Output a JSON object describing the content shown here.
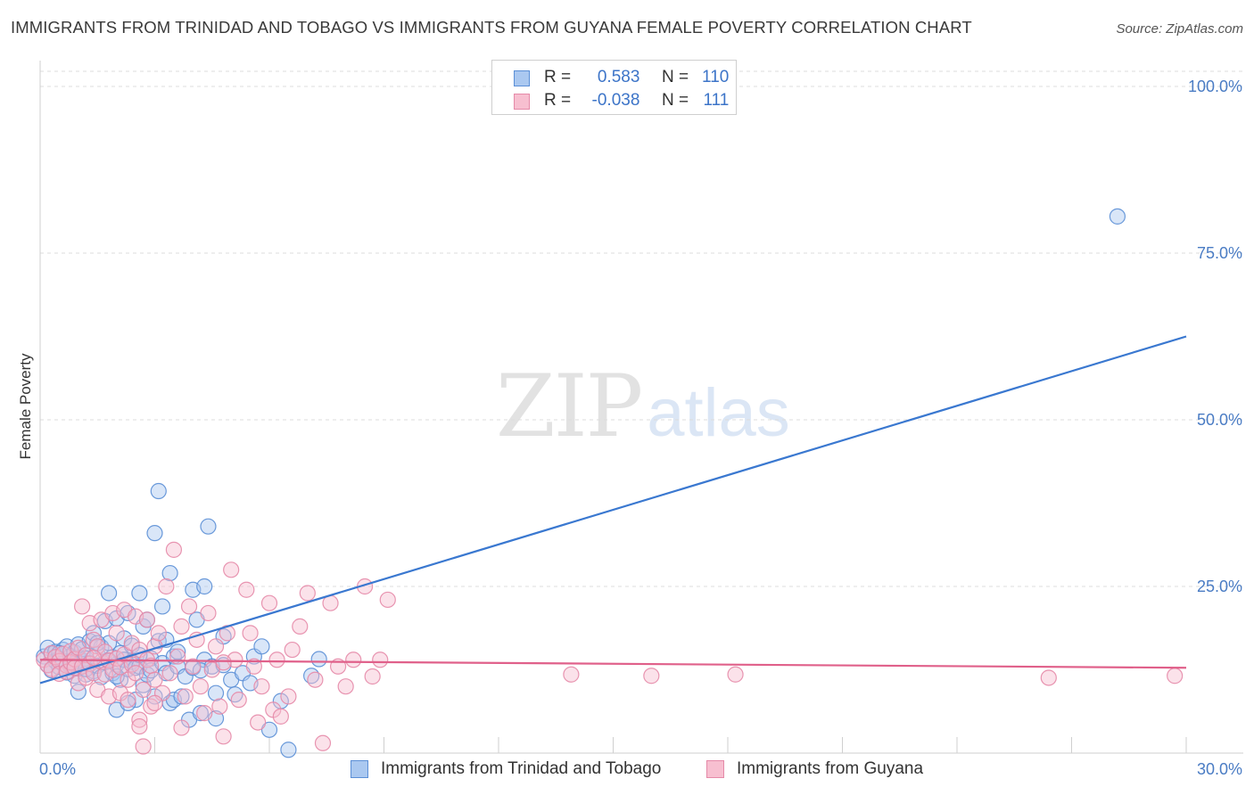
{
  "header": {
    "title": "IMMIGRANTS FROM TRINIDAD AND TOBAGO VS IMMIGRANTS FROM GUYANA FEMALE POVERTY CORRELATION CHART",
    "source": "Source: ZipAtlas.com"
  },
  "watermark": {
    "zip": "ZIP",
    "atlas": "atlas"
  },
  "legend": {
    "series": [
      {
        "r_label": "R =",
        "r_value": "0.583",
        "n_label": "N =",
        "n_value": "110"
      },
      {
        "r_label": "R =",
        "r_value": "-0.038",
        "n_label": "N =",
        "n_value": "111"
      }
    ]
  },
  "colors": {
    "blue_fill": "#aac8f0",
    "blue_stroke": "#5b8fd6",
    "blue_line": "#3a78d0",
    "pink_fill": "#f7bfd0",
    "pink_stroke": "#e58aa8",
    "pink_line": "#e0608a",
    "grid": "#dcdcdc",
    "tick_text": "#4a7cc4"
  },
  "chart_data": {
    "type": "scatter",
    "title": "IMMIGRANTS FROM TRINIDAD AND TOBAGO VS IMMIGRANTS FROM GUYANA FEMALE POVERTY CORRELATION CHART",
    "xlabel": "",
    "ylabel": "Female Poverty",
    "xlim": [
      0,
      30
    ],
    "ylim": [
      0,
      100
    ],
    "x_ticks": [
      "0.0%",
      "30.0%"
    ],
    "y_ticks": [
      {
        "value": 25,
        "label": "25.0%"
      },
      {
        "value": 50,
        "label": "50.0%"
      },
      {
        "value": 75,
        "label": "75.0%"
      },
      {
        "value": 100,
        "label": "100.0%"
      }
    ],
    "series": [
      {
        "name": "Immigrants from Trinidad and Tobago",
        "r": 0.583,
        "n": 110,
        "trend": {
          "x": [
            0,
            30
          ],
          "y": [
            10.5,
            62.5
          ]
        },
        "points": [
          [
            0.1,
            14.5
          ],
          [
            0.2,
            15.8
          ],
          [
            0.2,
            13.2
          ],
          [
            0.3,
            14.9
          ],
          [
            0.3,
            12.4
          ],
          [
            0.4,
            15.2
          ],
          [
            0.4,
            13.8
          ],
          [
            0.5,
            14.1
          ],
          [
            0.5,
            12.9
          ],
          [
            0.6,
            15.5
          ],
          [
            0.6,
            13.4
          ],
          [
            0.7,
            16.0
          ],
          [
            0.7,
            12.1
          ],
          [
            0.8,
            14.6
          ],
          [
            0.8,
            13.0
          ],
          [
            0.9,
            15.1
          ],
          [
            0.9,
            11.6
          ],
          [
            1.0,
            14.3
          ],
          [
            1.0,
            16.3
          ],
          [
            1.0,
            12.7
          ],
          [
            1.1,
            13.9
          ],
          [
            1.1,
            15.6
          ],
          [
            1.2,
            14.2
          ],
          [
            1.2,
            11.8
          ],
          [
            1.3,
            13.5
          ],
          [
            1.3,
            16.8
          ],
          [
            1.4,
            18.0
          ],
          [
            1.4,
            12.3
          ],
          [
            1.5,
            14.8
          ],
          [
            1.5,
            13.1
          ],
          [
            1.6,
            15.9
          ],
          [
            1.6,
            11.4
          ],
          [
            1.7,
            19.8
          ],
          [
            1.7,
            13.6
          ],
          [
            1.8,
            16.5
          ],
          [
            1.8,
            24.0
          ],
          [
            1.9,
            12.0
          ],
          [
            1.9,
            14.4
          ],
          [
            2.0,
            13.3
          ],
          [
            2.0,
            20.2
          ],
          [
            2.1,
            15.0
          ],
          [
            2.1,
            11.0
          ],
          [
            2.2,
            17.2
          ],
          [
            2.2,
            14.0
          ],
          [
            2.3,
            12.6
          ],
          [
            2.3,
            21.0
          ],
          [
            2.4,
            13.7
          ],
          [
            2.4,
            16.1
          ],
          [
            2.5,
            8.0
          ],
          [
            2.5,
            12.8
          ],
          [
            2.6,
            24.0
          ],
          [
            2.6,
            13.0
          ],
          [
            2.7,
            19.0
          ],
          [
            2.7,
            10.2
          ],
          [
            2.8,
            20.0
          ],
          [
            2.8,
            11.8
          ],
          [
            2.9,
            14.2
          ],
          [
            2.9,
            12.4
          ],
          [
            3.0,
            33.0
          ],
          [
            3.0,
            8.5
          ],
          [
            3.1,
            39.3
          ],
          [
            3.1,
            16.8
          ],
          [
            3.2,
            22.0
          ],
          [
            3.2,
            13.5
          ],
          [
            3.3,
            17.0
          ],
          [
            3.3,
            12.0
          ],
          [
            3.4,
            27.0
          ],
          [
            3.4,
            7.5
          ],
          [
            3.5,
            14.5
          ],
          [
            3.5,
            8.0
          ],
          [
            3.6,
            13.0
          ],
          [
            3.7,
            8.5
          ],
          [
            3.8,
            11.5
          ],
          [
            3.9,
            5.0
          ],
          [
            4.0,
            24.5
          ],
          [
            4.0,
            12.8
          ],
          [
            4.1,
            20.0
          ],
          [
            4.2,
            6.0
          ],
          [
            4.3,
            25.0
          ],
          [
            4.3,
            14.0
          ],
          [
            4.4,
            34.0
          ],
          [
            4.5,
            13.0
          ],
          [
            4.6,
            9.0
          ],
          [
            4.6,
            5.2
          ],
          [
            4.8,
            17.5
          ],
          [
            4.8,
            13.2
          ],
          [
            5.0,
            11.0
          ],
          [
            5.1,
            8.8
          ],
          [
            5.3,
            12.0
          ],
          [
            5.5,
            10.5
          ],
          [
            5.6,
            14.5
          ],
          [
            5.8,
            16.0
          ],
          [
            6.0,
            3.5
          ],
          [
            6.3,
            7.8
          ],
          [
            6.5,
            0.5
          ],
          [
            1.0,
            9.2
          ],
          [
            2.0,
            6.5
          ],
          [
            2.3,
            7.5
          ],
          [
            1.5,
            16.5
          ],
          [
            0.5,
            15.0
          ],
          [
            0.9,
            13.4
          ],
          [
            1.2,
            12.6
          ],
          [
            1.8,
            13.8
          ],
          [
            2.6,
            14.7
          ],
          [
            3.6,
            15.2
          ],
          [
            4.2,
            12.4
          ],
          [
            7.1,
            11.6
          ],
          [
            7.3,
            14.1
          ],
          [
            2.0,
            11.5
          ],
          [
            28.2,
            80.5
          ]
        ]
      },
      {
        "name": "Immigrants from Guyana",
        "r": -0.038,
        "n": 111,
        "trend": {
          "x": [
            0,
            30
          ],
          "y": [
            14.0,
            12.8
          ]
        },
        "points": [
          [
            0.1,
            14.0
          ],
          [
            0.2,
            13.2
          ],
          [
            0.3,
            15.0
          ],
          [
            0.3,
            12.6
          ],
          [
            0.4,
            14.4
          ],
          [
            0.5,
            13.8
          ],
          [
            0.5,
            11.9
          ],
          [
            0.6,
            14.9
          ],
          [
            0.7,
            13.1
          ],
          [
            0.7,
            12.2
          ],
          [
            0.8,
            15.3
          ],
          [
            0.8,
            13.6
          ],
          [
            0.9,
            14.1
          ],
          [
            0.9,
            12.8
          ],
          [
            1.0,
            10.5
          ],
          [
            1.0,
            15.8
          ],
          [
            1.1,
            13.0
          ],
          [
            1.1,
            22.0
          ],
          [
            1.2,
            14.7
          ],
          [
            1.2,
            11.3
          ],
          [
            1.3,
            19.5
          ],
          [
            1.3,
            13.4
          ],
          [
            1.4,
            17.0
          ],
          [
            1.4,
            12.0
          ],
          [
            1.5,
            16.0
          ],
          [
            1.5,
            9.5
          ],
          [
            1.6,
            13.7
          ],
          [
            1.6,
            20.0
          ],
          [
            1.7,
            11.8
          ],
          [
            1.7,
            15.2
          ],
          [
            1.8,
            8.5
          ],
          [
            1.8,
            13.9
          ],
          [
            1.9,
            21.0
          ],
          [
            1.9,
            12.5
          ],
          [
            2.0,
            14.2
          ],
          [
            2.0,
            18.0
          ],
          [
            2.1,
            9.0
          ],
          [
            2.1,
            12.9
          ],
          [
            2.2,
            21.5
          ],
          [
            2.2,
            14.8
          ],
          [
            2.3,
            11.0
          ],
          [
            2.3,
            8.0
          ],
          [
            2.4,
            16.5
          ],
          [
            2.4,
            13.3
          ],
          [
            2.5,
            20.5
          ],
          [
            2.5,
            12.0
          ],
          [
            2.6,
            5.0
          ],
          [
            2.6,
            15.5
          ],
          [
            2.7,
            9.5
          ],
          [
            2.7,
            1.0
          ],
          [
            2.8,
            14.0
          ],
          [
            2.8,
            20.0
          ],
          [
            2.9,
            13.1
          ],
          [
            2.9,
            7.0
          ],
          [
            3.0,
            16.0
          ],
          [
            3.0,
            11.0
          ],
          [
            3.1,
            18.0
          ],
          [
            3.2,
            9.0
          ],
          [
            3.3,
            25.0
          ],
          [
            3.4,
            12.0
          ],
          [
            3.5,
            30.5
          ],
          [
            3.6,
            14.5
          ],
          [
            3.7,
            19.0
          ],
          [
            3.8,
            8.5
          ],
          [
            3.9,
            22.0
          ],
          [
            4.0,
            13.0
          ],
          [
            4.1,
            17.0
          ],
          [
            4.2,
            10.0
          ],
          [
            4.3,
            6.0
          ],
          [
            4.4,
            21.0
          ],
          [
            4.5,
            12.5
          ],
          [
            4.6,
            16.0
          ],
          [
            4.7,
            7.0
          ],
          [
            4.8,
            2.5
          ],
          [
            4.9,
            18.0
          ],
          [
            5.0,
            27.5
          ],
          [
            5.1,
            14.0
          ],
          [
            5.2,
            8.0
          ],
          [
            5.4,
            24.5
          ],
          [
            5.5,
            18.0
          ],
          [
            5.6,
            13.0
          ],
          [
            5.8,
            10.0
          ],
          [
            6.0,
            22.5
          ],
          [
            6.1,
            6.5
          ],
          [
            6.3,
            5.5
          ],
          [
            6.5,
            8.5
          ],
          [
            6.6,
            15.5
          ],
          [
            6.8,
            19.0
          ],
          [
            7.0,
            24.0
          ],
          [
            7.2,
            11.0
          ],
          [
            7.4,
            1.5
          ],
          [
            7.6,
            22.5
          ],
          [
            7.8,
            13.0
          ],
          [
            8.0,
            10.0
          ],
          [
            8.2,
            14.0
          ],
          [
            8.5,
            25.0
          ],
          [
            8.7,
            11.5
          ],
          [
            8.9,
            14.0
          ],
          [
            9.1,
            23.0
          ],
          [
            13.9,
            11.8
          ],
          [
            16.0,
            11.6
          ],
          [
            18.2,
            11.8
          ],
          [
            26.4,
            11.3
          ],
          [
            29.7,
            11.6
          ],
          [
            3.7,
            3.8
          ],
          [
            2.6,
            4.0
          ],
          [
            3.0,
            7.5
          ],
          [
            5.7,
            4.6
          ],
          [
            6.2,
            14.0
          ],
          [
            4.8,
            13.6
          ],
          [
            1.4,
            14.3
          ]
        ]
      }
    ]
  },
  "bottom_legend": [
    {
      "label": "Immigrants from Trinidad and Tobago"
    },
    {
      "label": "Immigrants from Guyana"
    }
  ]
}
